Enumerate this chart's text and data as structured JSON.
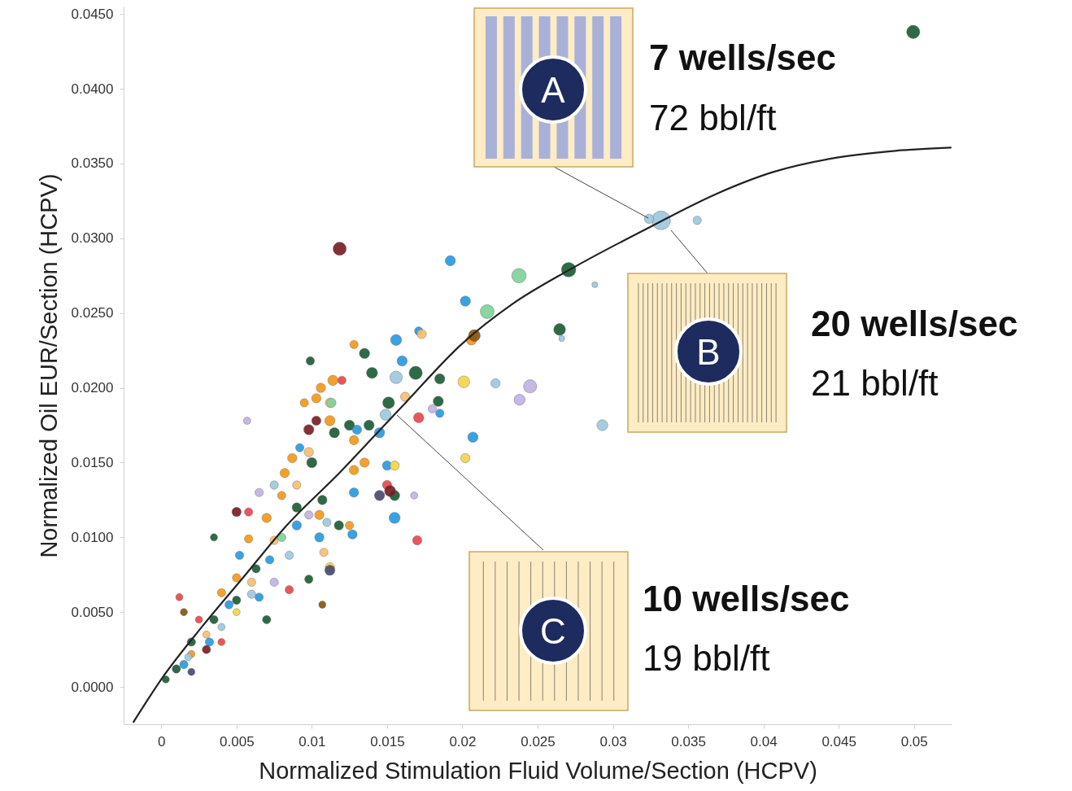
{
  "chart_data": {
    "type": "bubble",
    "xlabel": "Normalized Stimulation Fluid Volume/Section (HCPV)",
    "ylabel": "Normalized Oil EUR/Section (HCPV)",
    "xlim": [
      -0.0025,
      0.0525
    ],
    "ylim": [
      -0.0025,
      0.0455
    ],
    "xticks": [
      0,
      0.005,
      0.01,
      0.015,
      0.02,
      0.025,
      0.03,
      0.035,
      0.04,
      0.045,
      0.05
    ],
    "yticks": [
      {
        "value": 0,
        "label": "0.0000"
      },
      {
        "value": 0.005,
        "label": "0.0050"
      },
      {
        "value": 0.01,
        "label": "0.0100"
      },
      {
        "value": 0.015,
        "label": "0.0150"
      },
      {
        "value": 0.02,
        "label": "0.0200"
      },
      {
        "value": 0.025,
        "label": "0.0250"
      },
      {
        "value": 0.03,
        "label": "0.0300"
      },
      {
        "value": 0.035,
        "label": "0.0350"
      },
      {
        "value": 0.04,
        "label": "0.0400"
      },
      {
        "value": 0.045,
        "label": "0.0450"
      }
    ],
    "series": [
      {
        "color": "#1e5e38",
        "x": [
          0.04995,
          0.02706,
          0.02646,
          0.0169,
          0.0185,
          0.0184,
          0.0151,
          0.0099,
          0.0135,
          0.014,
          0.0115,
          0.0125,
          0.0138,
          0.01,
          0.009,
          0.0107,
          0.0118,
          0.0063,
          0.005,
          0.0035,
          0.002,
          0.001,
          0.0035,
          0.0098,
          0.007,
          0.0155,
          0.0003
        ],
        "values": [
          0.0438,
          0.0279,
          0.0239,
          0.021,
          0.0206,
          0.0191,
          0.019,
          0.0218,
          0.0223,
          0.021,
          0.017,
          0.0175,
          0.0175,
          0.015,
          0.012,
          0.0125,
          0.0108,
          0.0079,
          0.0058,
          0.0045,
          0.003,
          0.0012,
          0.01,
          0.0072,
          0.0045,
          0.0128,
          0.0005
        ],
        "sizes": [
          0.5,
          0.6,
          0.4,
          0.5,
          0.3,
          0.3,
          0.4,
          0.2,
          0.3,
          0.35,
          0.3,
          0.3,
          0.3,
          0.3,
          0.25,
          0.25,
          0.25,
          0.2,
          0.2,
          0.2,
          0.2,
          0.2,
          0.15,
          0.2,
          0.2,
          0.3,
          0.15
        ]
      },
      {
        "color": "#2a9be0",
        "x": [
          0.0192,
          0.0202,
          0.0156,
          0.0171,
          0.016,
          0.0207,
          0.0185,
          0.0145,
          0.013,
          0.0092,
          0.009,
          0.0072,
          0.0105,
          0.0065,
          0.0045,
          0.0032,
          0.0015,
          0.0155,
          0.0128,
          0.015,
          0.0052,
          0.0127
        ],
        "values": [
          0.0285,
          0.0258,
          0.0232,
          0.0238,
          0.0218,
          0.0167,
          0.0183,
          0.017,
          0.0172,
          0.016,
          0.0108,
          0.0085,
          0.01,
          0.006,
          0.0055,
          0.003,
          0.0015,
          0.0113,
          0.013,
          0.0148,
          0.0088,
          0.0102
        ],
        "sizes": [
          0.3,
          0.3,
          0.35,
          0.2,
          0.3,
          0.3,
          0.2,
          0.3,
          0.25,
          0.2,
          0.25,
          0.2,
          0.25,
          0.2,
          0.2,
          0.2,
          0.2,
          0.35,
          0.25,
          0.25,
          0.2,
          0.25
        ]
      },
      {
        "color": "#f39a1c",
        "x": [
          0.0206,
          0.0128,
          0.0114,
          0.0106,
          0.0103,
          0.0095,
          0.0112,
          0.0128,
          0.0087,
          0.0082,
          0.008,
          0.0128,
          0.0125,
          0.007,
          0.0058,
          0.005,
          0.004,
          0.0105,
          0.0135,
          0.002
        ],
        "values": [
          0.0232,
          0.0229,
          0.0205,
          0.02,
          0.0193,
          0.019,
          0.0178,
          0.0165,
          0.0153,
          0.0143,
          0.0128,
          0.0145,
          0.0108,
          0.0113,
          0.0099,
          0.0073,
          0.0063,
          0.0115,
          0.015,
          0.0022
        ],
        "sizes": [
          0.3,
          0.2,
          0.3,
          0.25,
          0.25,
          0.2,
          0.3,
          0.25,
          0.25,
          0.25,
          0.2,
          0.25,
          0.2,
          0.25,
          0.2,
          0.2,
          0.2,
          0.25,
          0.25,
          0.15
        ]
      },
      {
        "color": "#f6c071",
        "x": [
          0.0173,
          0.0112,
          0.0098,
          0.009,
          0.0075,
          0.006,
          0.0108,
          0.003,
          0.0162
        ],
        "values": [
          0.0236,
          0.019,
          0.0157,
          0.0135,
          0.0098,
          0.007,
          0.009,
          0.0035,
          0.0194
        ],
        "sizes": [
          0.25,
          0.25,
          0.25,
          0.2,
          0.2,
          0.2,
          0.2,
          0.15,
          0.25
        ]
      },
      {
        "color": "#9fc8de",
        "x": [
          0.0332,
          0.0324,
          0.0356,
          0.0288,
          0.0266,
          0.0156,
          0.0222,
          0.0293,
          0.0149,
          0.0075,
          0.0085,
          0.006,
          0.004,
          0.0018,
          0.011
        ],
        "values": [
          0.0312,
          0.0313,
          0.0312,
          0.0269,
          0.0233,
          0.0207,
          0.0203,
          0.0175,
          0.0182,
          0.0135,
          0.0088,
          0.0062,
          0.004,
          0.002,
          0.011
        ],
        "sizes": [
          1,
          0.25,
          0.2,
          0.1,
          0.1,
          0.45,
          0.25,
          0.35,
          0.35,
          0.2,
          0.2,
          0.2,
          0.15,
          0.15,
          0.2
        ]
      },
      {
        "color": "#e9474e",
        "x": [
          0.0171,
          0.017,
          0.012,
          0.0058,
          0.0085,
          0.004,
          0.0025,
          0.0012,
          0.015
        ],
        "values": [
          0.018,
          0.0098,
          0.0205,
          0.0117,
          0.0065,
          0.003,
          0.0045,
          0.006,
          0.0135
        ],
        "sizes": [
          0.3,
          0.25,
          0.2,
          0.2,
          0.2,
          0.15,
          0.15,
          0.15,
          0.25
        ]
      },
      {
        "color": "#7a2024",
        "x": [
          0.01185,
          0.0098,
          0.005,
          0.0152,
          0.003,
          0.0103
        ],
        "values": [
          0.0293,
          0.0172,
          0.0117,
          0.0131,
          0.0025,
          0.0178
        ],
        "sizes": [
          0.5,
          0.3,
          0.25,
          0.35,
          0.2,
          0.25
        ]
      },
      {
        "color": "#c2b3e6",
        "x": [
          0.0245,
          0.0238,
          0.018,
          0.0057,
          0.0065,
          0.0098,
          0.0168,
          0.0075
        ],
        "values": [
          0.0201,
          0.0192,
          0.0186,
          0.0178,
          0.013,
          0.0115,
          0.0128,
          0.007
        ],
        "sizes": [
          0.5,
          0.35,
          0.2,
          0.15,
          0.2,
          0.2,
          0.15,
          0.2
        ]
      },
      {
        "color": "#f2d44c",
        "x": [
          0.0201,
          0.0202,
          0.0155,
          0.0112,
          0.005
        ],
        "values": [
          0.0204,
          0.0153,
          0.0148,
          0.008,
          0.005
        ],
        "sizes": [
          0.4,
          0.25,
          0.25,
          0.25,
          0.15
        ]
      },
      {
        "color": "#7fd39a",
        "x": [
          0.02376,
          0.02165,
          0.0113,
          0.008
        ],
        "values": [
          0.0275,
          0.0251,
          0.019,
          0.01
        ],
        "sizes": [
          0.6,
          0.55,
          0.25,
          0.2
        ]
      },
      {
        "color": "#4a4a72",
        "x": [
          0.0145,
          0.0112,
          0.002
        ],
        "values": [
          0.0128,
          0.0078,
          0.001
        ],
        "sizes": [
          0.3,
          0.3,
          0.15
        ]
      },
      {
        "color": "#8a5510",
        "x": [
          0.0107,
          0.0015,
          0.0208
        ],
        "values": [
          0.0055,
          0.005,
          0.0235
        ],
        "sizes": [
          0.15,
          0.15,
          0.4
        ]
      },
      {
        "type": "line",
        "color": "#222222",
        "x": [
          -0.00184,
          0.0001,
          0.00276,
          0.00547,
          0.00817,
          0.01196,
          0.01537,
          0.01629,
          0.01991,
          0.02332,
          0.02711,
          0.03252,
          0.03685,
          0.04064,
          0.04497,
          0.04876,
          0.05244
        ],
        "values": [
          -0.00234,
          0.00065,
          0.00409,
          0.00735,
          0.01062,
          0.01444,
          0.01809,
          0.01907,
          0.02288,
          0.0256,
          0.02789,
          0.03078,
          0.03296,
          0.03443,
          0.03541,
          0.03585,
          0.03606
        ]
      }
    ],
    "annotations": [
      "A",
      "7 wells/sec",
      "72 bbl/ft",
      "B",
      "20 wells/sec",
      "21 bbl/ft",
      "C",
      "10 wells/sec",
      "19 bbl/ft"
    ]
  }
}
